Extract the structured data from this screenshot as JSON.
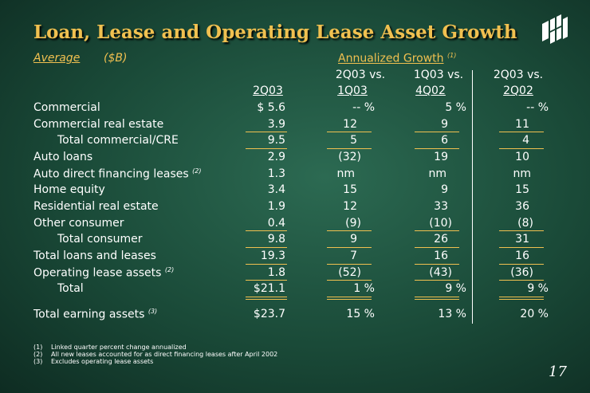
{
  "title": "Loan, Lease and Operating Lease Asset Growth",
  "logo_icon": "huntington-logo-icon",
  "header": {
    "average": "Average",
    "unit": "($B)",
    "growth": "Annualized Growth",
    "growth_note": "(1)"
  },
  "columns": {
    "c1": "2Q03",
    "c2_line1": "2Q03 vs.",
    "c2_line2": "1Q03",
    "c3_line1": "1Q03 vs.",
    "c3_line2": "4Q02",
    "c4_line1": "2Q03 vs.",
    "c4_line2": "2Q02"
  },
  "rows": [
    {
      "label": "Commercial",
      "note": "",
      "c1": "$ 5.6",
      "c2": "-- %",
      "c3": "5 %",
      "c4": "-- %"
    },
    {
      "label": "Commercial real estate",
      "note": "",
      "c1": "3.9",
      "c2": "12",
      "c3": "9",
      "c4": "11"
    },
    {
      "label": "Total commercial/CRE",
      "note": "",
      "c1": "9.5",
      "c2": "5",
      "c3": "6",
      "c4": "4"
    },
    {
      "label": "Auto loans",
      "note": "",
      "c1": "2.9",
      "c2": "(32)",
      "c3": "19",
      "c4": "10"
    },
    {
      "label": "Auto direct financing leases",
      "note": "(2)",
      "c1": "1.3",
      "c2": "nm",
      "c3": "nm",
      "c4": "nm"
    },
    {
      "label": "Home equity",
      "note": "",
      "c1": "3.4",
      "c2": "15",
      "c3": "9",
      "c4": "15"
    },
    {
      "label": "Residential real estate",
      "note": "",
      "c1": "1.9",
      "c2": "12",
      "c3": "33",
      "c4": "36"
    },
    {
      "label": "Other consumer",
      "note": "",
      "c1": "0.4",
      "c2": "(9)",
      "c3": "(10)",
      "c4": "(8)"
    },
    {
      "label": "Total consumer",
      "note": "",
      "c1": "9.8",
      "c2": "9",
      "c3": "26",
      "c4": "31"
    },
    {
      "label": "Total loans and leases",
      "note": "",
      "c1": "19.3",
      "c2": "7",
      "c3": "16",
      "c4": "16"
    },
    {
      "label": "Operating lease assets",
      "note": "(2)",
      "c1": "1.8",
      "c2": "(52)",
      "c3": "(43)",
      "c4": "(36)"
    },
    {
      "label": "Total",
      "note": "",
      "c1": "$21.1",
      "c2": "1 %",
      "c3": "9 %",
      "c4": "9 %"
    },
    {
      "label": "Total earning assets",
      "note": "(3)",
      "c1": "$23.7",
      "c2": "15 %",
      "c3": "13 %",
      "c4": "20 %"
    }
  ],
  "footnotes": [
    {
      "num": "(1)",
      "text": "Linked quarter percent change annualized"
    },
    {
      "num": "(2)",
      "text": "All new leases accounted for as direct financing leases after April 2002"
    },
    {
      "num": "(3)",
      "text": "Excludes operating lease assets"
    }
  ],
  "page_number": "17"
}
